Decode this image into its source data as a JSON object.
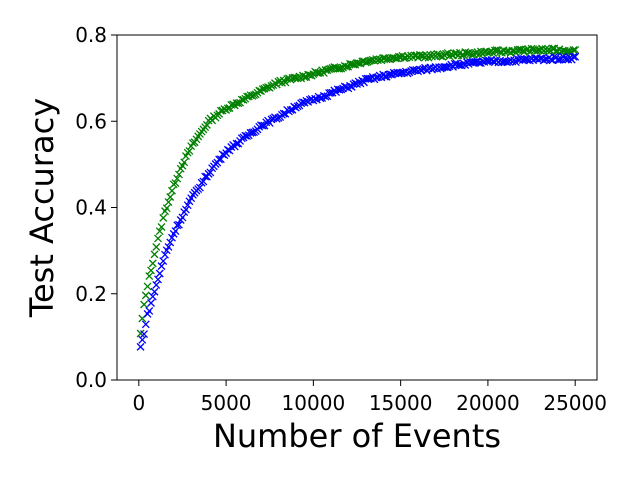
{
  "chart_data": {
    "type": "scatter",
    "title": "",
    "xlabel": "Number of Events",
    "ylabel": "Test Accuracy",
    "xlim": [
      -1250,
      26250
    ],
    "ylim": [
      0.0,
      0.8
    ],
    "xticks": [
      0,
      5000,
      10000,
      15000,
      20000,
      25000
    ],
    "xtick_labels": [
      "0",
      "5000",
      "10000",
      "15000",
      "20000",
      "25000"
    ],
    "yticks": [
      0.0,
      0.2,
      0.4,
      0.6,
      0.8
    ],
    "ytick_labels": [
      "0.0",
      "0.2",
      "0.4",
      "0.6",
      "0.8"
    ],
    "grid": false,
    "marker": "x",
    "series": [
      {
        "color": "#008000",
        "x": [
          0,
          250,
          500,
          1000,
          1500,
          2000,
          2500,
          3000,
          3500,
          4000,
          5000,
          6000,
          7000,
          8000,
          9000,
          10000,
          11000,
          12000,
          13000,
          14000,
          15000,
          16000,
          17000,
          18000,
          19000,
          20000,
          21000,
          22000,
          23000,
          24000,
          25000
        ],
        "y": [
          0.07,
          0.16,
          0.22,
          0.31,
          0.39,
          0.45,
          0.5,
          0.54,
          0.57,
          0.6,
          0.63,
          0.65,
          0.67,
          0.69,
          0.7,
          0.71,
          0.72,
          0.73,
          0.74,
          0.745,
          0.75,
          0.75,
          0.752,
          0.755,
          0.757,
          0.76,
          0.762,
          0.764,
          0.765,
          0.765,
          0.763
        ]
      },
      {
        "color": "#0000ff",
        "x": [
          0,
          250,
          500,
          1000,
          1500,
          2000,
          2500,
          3000,
          3500,
          4000,
          5000,
          6000,
          7000,
          8000,
          9000,
          10000,
          11000,
          12000,
          13000,
          14000,
          15000,
          16000,
          17000,
          18000,
          19000,
          20000,
          21000,
          22000,
          23000,
          24000,
          25000
        ],
        "y": [
          0.06,
          0.1,
          0.15,
          0.22,
          0.29,
          0.34,
          0.38,
          0.42,
          0.45,
          0.48,
          0.53,
          0.56,
          0.59,
          0.61,
          0.635,
          0.65,
          0.665,
          0.68,
          0.695,
          0.705,
          0.712,
          0.718,
          0.724,
          0.73,
          0.734,
          0.738,
          0.74,
          0.742,
          0.744,
          0.746,
          0.747
        ]
      }
    ]
  }
}
